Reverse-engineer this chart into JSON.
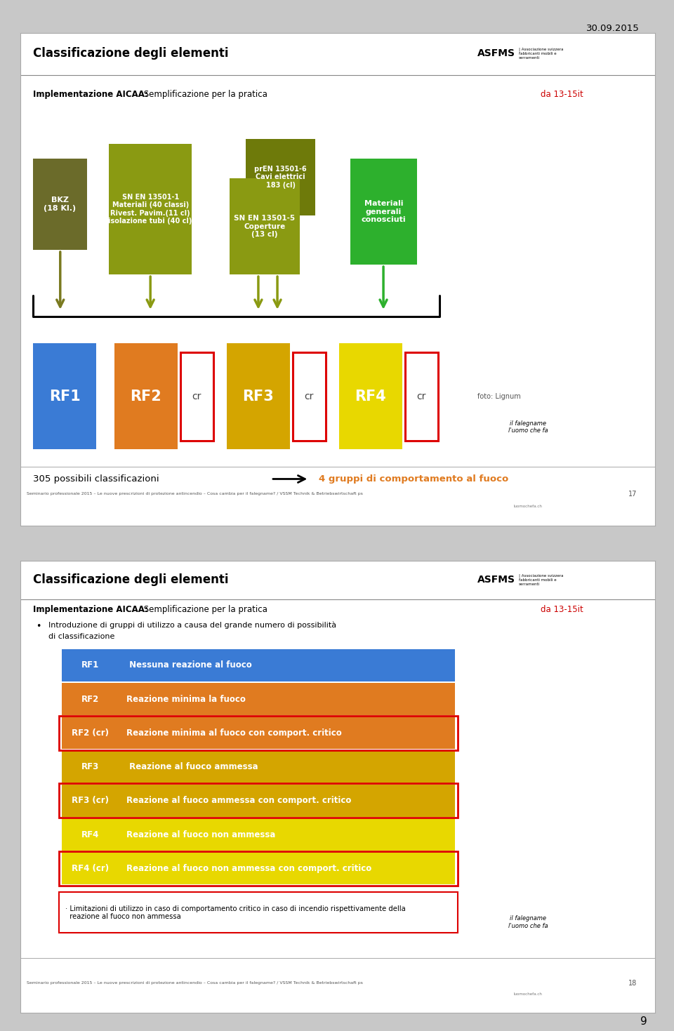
{
  "title": "Classificazione degli elementi",
  "date": "30.09.2015",
  "page_num": "9",
  "slide1": {
    "title": "Classificazione degli elementi",
    "subtitle_bold": "Implementazione AICAA:",
    "subtitle_normal": " Semplificazione per la pratica",
    "da_label": "da 13-15it",
    "foto_label": "foto: Lignum",
    "bottom_text": "305 possibili classificazioni",
    "arrow_text": "4 gruppi di comportamento al fuoco",
    "footer": "Seminario professionale 2015 – Le nuove prescrizioni di protezione antincendio – Cosa cambia per il falegname? / VSSM Technik & Betriebswirtschaft ps",
    "slide_num": "17"
  },
  "slide2": {
    "title": "Classificazione degli elementi",
    "subtitle_bold": "Implementazione AICAA:",
    "subtitle_normal": " Semplificazione per la pratica",
    "da_label": "da 13-15it",
    "table_rows": [
      {
        "label": "RF1",
        "label_bg": "#3a7bd5",
        "desc": " Nessuna reazione al fuoco",
        "desc_bg": "#3a7bd5",
        "border": false
      },
      {
        "label": "RF2",
        "label_bg": "#e07b20",
        "desc": "Reazione minima la fuoco",
        "desc_bg": "#e07b20",
        "border": false
      },
      {
        "label": "RF2 (cr)",
        "label_bg": "#e07b20",
        "desc": "Reazione minima al fuoco con comport. critico",
        "desc_bg": "#e07b20",
        "border": true
      },
      {
        "label": "RF3",
        "label_bg": "#d4a500",
        "desc": " Reazione al fuoco ammessa",
        "desc_bg": "#d4a500",
        "border": false
      },
      {
        "label": "RF3 (cr)",
        "label_bg": "#d4a500",
        "desc": "Reazione al fuoco ammessa con comport. critico",
        "desc_bg": "#d4a500",
        "border": true
      },
      {
        "label": "RF4",
        "label_bg": "#e8d800",
        "desc": "Reazione al fuoco non ammessa",
        "desc_bg": "#e8d800",
        "border": false
      },
      {
        "label": "RF4 (cr)",
        "label_bg": "#e8d800",
        "desc": "Reazione al fuoco non ammessa con comport. critico",
        "desc_bg": "#e8d800",
        "border": true
      }
    ],
    "note": "· Limitazioni di utilizzo in caso di comportamento critico in caso di incendio rispettivamente della\n  reazione al fuoco non ammessa",
    "footer": "Seminario professionale 2015 – Le nuove prescrizioni di protezione antincendio – Cosa cambia per il falegname? / VSSM Technik & Betriebswirtschaft ps",
    "slide_num": "18"
  }
}
